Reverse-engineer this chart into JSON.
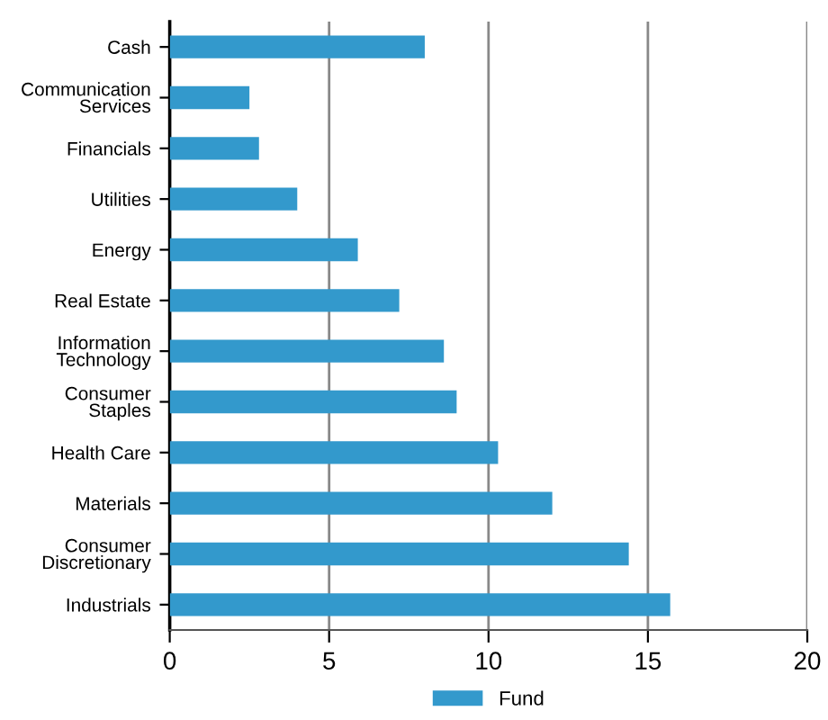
{
  "chart_data": {
    "type": "bar",
    "orientation": "horizontal",
    "categories": [
      "Cash",
      "Communication\nServices",
      "Financials",
      "Utilities",
      "Energy",
      "Real Estate",
      "Information\nTechnology",
      "Consumer\nStaples",
      "Health Care",
      "Materials",
      "Consumer\nDiscretionary",
      "Industrials"
    ],
    "series": [
      {
        "name": "Fund",
        "color": "#3399cc",
        "values": [
          8.0,
          2.5,
          2.8,
          4.0,
          5.9,
          7.2,
          8.6,
          9.0,
          10.3,
          12.0,
          14.4,
          15.7
        ]
      }
    ],
    "xlim": [
      0,
      20
    ],
    "xticks": [
      0,
      5,
      10,
      15,
      20
    ],
    "grid": "x",
    "legend": "bottom"
  }
}
